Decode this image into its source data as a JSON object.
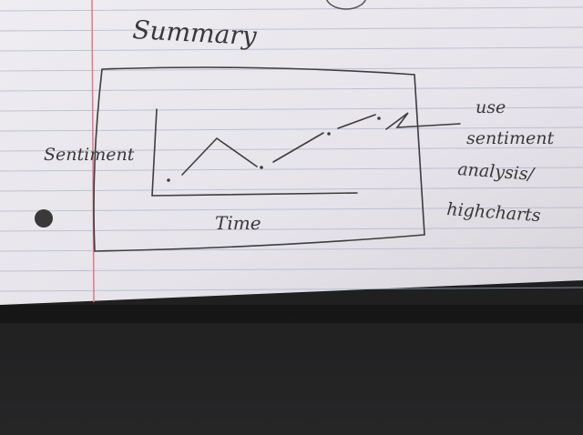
{
  "header": {
    "title": "Summary"
  },
  "sketch": {
    "y_axis_label": "Sentiment",
    "x_axis_label": "Time"
  },
  "note": {
    "lines": [
      "use",
      "sentiment",
      "analysis/",
      "highcharts"
    ]
  }
}
